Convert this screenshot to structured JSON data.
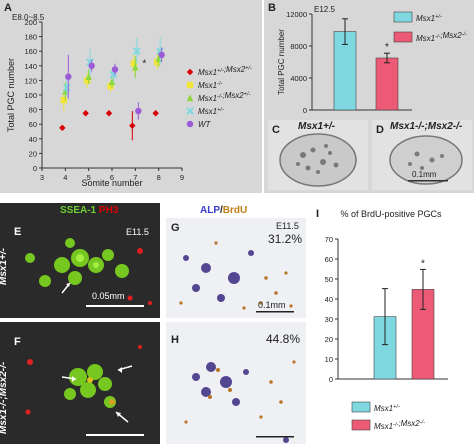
{
  "panels": {
    "A": {
      "letter": "A",
      "stage": "E8.0~8.5",
      "ylabel": "Total PGC number",
      "xlabel": "Somite number",
      "star": "*"
    },
    "B": {
      "letter": "B",
      "stage": "E12.5",
      "ylabel": "Total PGC number",
      "star": "*",
      "legend": [
        "Msx1+/-",
        "Msx1-/-;Msx2-/-"
      ]
    },
    "C": {
      "letter": "C",
      "title": "Msx1+/-"
    },
    "D": {
      "letter": "D",
      "title": "Msx1-/-;Msx2-/-",
      "scale": "0.1mm"
    },
    "E": {
      "letter": "E",
      "stain": "SSEA-1",
      "stain_sep": "/",
      "stain2": "PH3",
      "stage": "E11.5",
      "row_label": "Msx1+/-",
      "scale": "0.05mm"
    },
    "F": {
      "letter": "F",
      "row_label": "Msx1-/-;Msx2-/-"
    },
    "G": {
      "letter": "G",
      "stain": "ALP",
      "stain_sep": "/",
      "stain2": "BrdU",
      "stage": "E11.5",
      "percent": "31.2%",
      "scale": "0.1mm"
    },
    "H": {
      "letter": "H",
      "percent": "44.8%"
    },
    "I": {
      "letter": "I",
      "title": "% of BrdU-positive PGCs",
      "star": "*",
      "legend": [
        "Msx1+/-",
        "Msx1-/-;Msx2-/-"
      ]
    }
  },
  "colors": {
    "het": "#7fd8e0",
    "dko": "#ec5a75",
    "wt": "#9c5bd6",
    "msx2het": "#d80000",
    "msx1ko": "#f2e53a",
    "msx1ko_msx2het": "#8bd83a"
  },
  "chart_data": [
    {
      "panel": "A",
      "type": "scatter",
      "xlabel": "Somite number",
      "ylabel": "Total PGC number",
      "xlim": [
        3,
        9
      ],
      "ylim": [
        0,
        200
      ],
      "xticks": [
        3,
        4,
        5,
        6,
        7,
        8,
        9
      ],
      "yticks": [
        0,
        20,
        40,
        60,
        80,
        100,
        120,
        140,
        160,
        180,
        200
      ],
      "legend_position": "right",
      "series": [
        {
          "name": "Msx1+/-;Msx2+/-",
          "marker": "diamond",
          "color": "#d80000",
          "x": [
            4,
            5,
            6,
            7,
            8
          ],
          "y": [
            55,
            75,
            75,
            58,
            75
          ],
          "err": [
            0,
            0,
            0,
            20,
            0
          ]
        },
        {
          "name": "Msx1-/-",
          "marker": "square",
          "color": "#f2e53a",
          "x": [
            4,
            5,
            6,
            7,
            8
          ],
          "y": [
            93,
            120,
            112,
            143,
            145
          ],
          "err": [
            15,
            10,
            8,
            12,
            10
          ]
        },
        {
          "name": "Msx1-/-;Msx2+/-",
          "marker": "triangle",
          "color": "#8bd83a",
          "x": [
            4,
            5,
            6,
            7,
            8
          ],
          "y": [
            105,
            125,
            118,
            138,
            150
          ],
          "err": [
            12,
            10,
            8,
            15,
            12
          ]
        },
        {
          "name": "Msx1+/-",
          "marker": "x",
          "color": "#7fd8e0",
          "x": [
            4,
            5,
            6,
            7,
            8
          ],
          "y": [
            110,
            145,
            128,
            160,
            160
          ],
          "err": [
            12,
            18,
            10,
            18,
            18
          ]
        },
        {
          "name": "WT",
          "marker": "circle",
          "color": "#9c5bd6",
          "x": [
            4,
            5,
            6,
            7,
            8
          ],
          "y": [
            125,
            140,
            135,
            78,
            155
          ],
          "err": [
            30,
            8,
            8,
            12,
            10
          ]
        }
      ],
      "annotation": {
        "text": "*",
        "x": 7,
        "y": 143
      }
    },
    {
      "panel": "B",
      "type": "bar",
      "ylabel": "Total PGC number",
      "categories": [
        "Msx1+/-",
        "Msx1-/-;Msx2-/-"
      ],
      "values": [
        9800,
        6500
      ],
      "errors": [
        1600,
        600
      ],
      "ylim": [
        0,
        12000
      ],
      "yticks": [
        0,
        4000,
        8000,
        12000
      ],
      "significance": [
        "",
        "*"
      ]
    },
    {
      "panel": "I",
      "type": "bar",
      "title": "% of BrdU-positive PGCs",
      "categories": [
        "Msx1+/-",
        "Msx1-/-;Msx2-/-"
      ],
      "values": [
        31.2,
        44.8
      ],
      "errors": [
        14,
        10
      ],
      "ylim": [
        0,
        70
      ],
      "yticks": [
        0,
        10,
        20,
        30,
        40,
        50,
        60,
        70
      ],
      "significance": [
        "",
        "*"
      ]
    }
  ]
}
